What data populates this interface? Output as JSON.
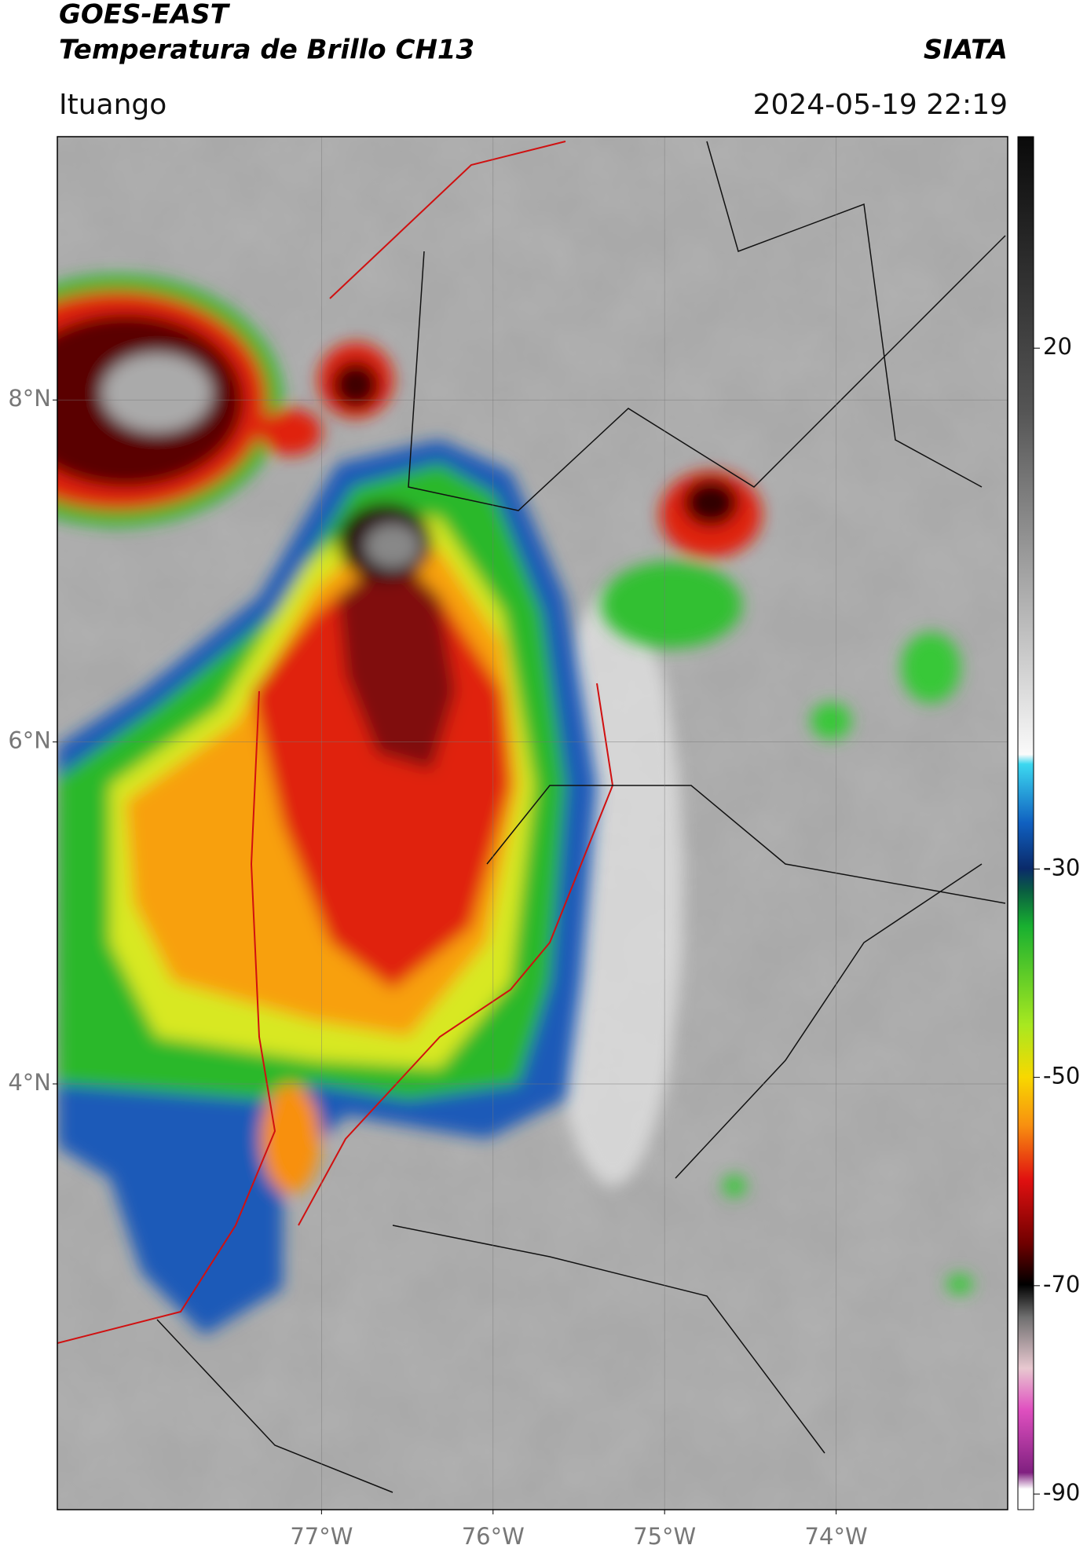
{
  "header": {
    "title": "GOES-EAST",
    "subtitle": "Temperatura de Brillo CH13",
    "brand": "SIATA",
    "location": "Ituango",
    "datetime": "2024-05-19 22:19"
  },
  "map": {
    "xlim": [
      -78.54,
      -73.0
    ],
    "ylim": [
      1.51,
      9.54
    ],
    "xticks": [
      {
        "value": -77,
        "label": "77°W"
      },
      {
        "value": -76,
        "label": "76°W"
      },
      {
        "value": -75,
        "label": "75°W"
      },
      {
        "value": -74,
        "label": "74°W"
      }
    ],
    "yticks": [
      {
        "value": 8,
        "label": "8°N"
      },
      {
        "value": 6,
        "label": "6°N"
      },
      {
        "value": 4,
        "label": "4°N"
      }
    ]
  },
  "colorbar": {
    "lim": [
      -91.5,
      40.3
    ],
    "ticks": [
      20,
      -30,
      -50,
      -70,
      -90
    ]
  }
}
